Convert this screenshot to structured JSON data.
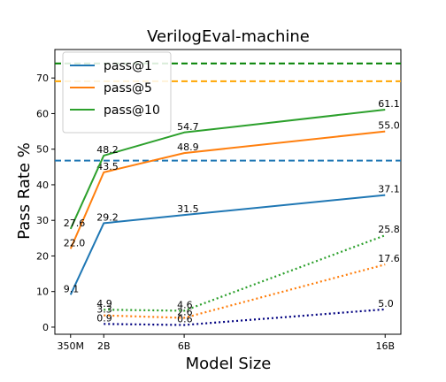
{
  "chart_data": {
    "type": "line",
    "title": "VerilogEval-machine",
    "xlabel": "Model Size",
    "ylabel": "Pass Rate %",
    "categories": [
      "350M",
      "2B",
      "6B",
      "16B"
    ],
    "x_positions_billions": [
      0.35,
      2,
      6,
      16
    ],
    "ylim": [
      -2,
      78
    ],
    "yticks": [
      0,
      10,
      20,
      30,
      40,
      50,
      60,
      70
    ],
    "legend_position": "top-left",
    "grid": false,
    "series": [
      {
        "name": "pass@1",
        "color": "#1f77b4",
        "style": "solid",
        "x": [
          0,
          1,
          2,
          3
        ],
        "values": [
          9.1,
          29.2,
          31.5,
          37.1
        ],
        "labels": [
          "9.1",
          "29.2",
          "31.5",
          "37.1"
        ]
      },
      {
        "name": "pass@5",
        "color": "#ff7f0e",
        "style": "solid",
        "x": [
          0,
          1,
          2,
          3
        ],
        "values": [
          22.0,
          43.5,
          48.9,
          55.0
        ],
        "labels": [
          "22.0",
          "43.5",
          "48.9",
          "55.0"
        ]
      },
      {
        "name": "pass@10",
        "color": "#2ca02c",
        "style": "solid",
        "x": [
          0,
          1,
          2,
          3
        ],
        "values": [
          27.6,
          48.2,
          54.7,
          61.1
        ],
        "labels": [
          "27.6",
          "48.2",
          "54.7",
          "61.1"
        ]
      },
      {
        "color": "#000080",
        "style": "dotted",
        "x": [
          1,
          2,
          3
        ],
        "values": [
          0.9,
          0.6,
          5.0
        ],
        "labels": [
          "0.9",
          "0.6",
          "5.0"
        ]
      },
      {
        "color": "#ff7f0e",
        "style": "dotted",
        "x": [
          1,
          2,
          3
        ],
        "values": [
          3.3,
          2.6,
          17.6
        ],
        "labels": [
          "3.3",
          "2.6",
          "17.6"
        ]
      },
      {
        "color": "#2ca02c",
        "style": "dotted",
        "x": [
          1,
          2,
          3
        ],
        "values": [
          4.9,
          4.6,
          25.8
        ],
        "labels": [
          "4.9",
          "4.6",
          "25.8"
        ]
      }
    ],
    "reference_lines": [
      {
        "y": 46.8,
        "color": "#1f77b4"
      },
      {
        "y": 69.1,
        "color": "#ffa500"
      },
      {
        "y": 74.1,
        "color": "#008000"
      }
    ]
  }
}
